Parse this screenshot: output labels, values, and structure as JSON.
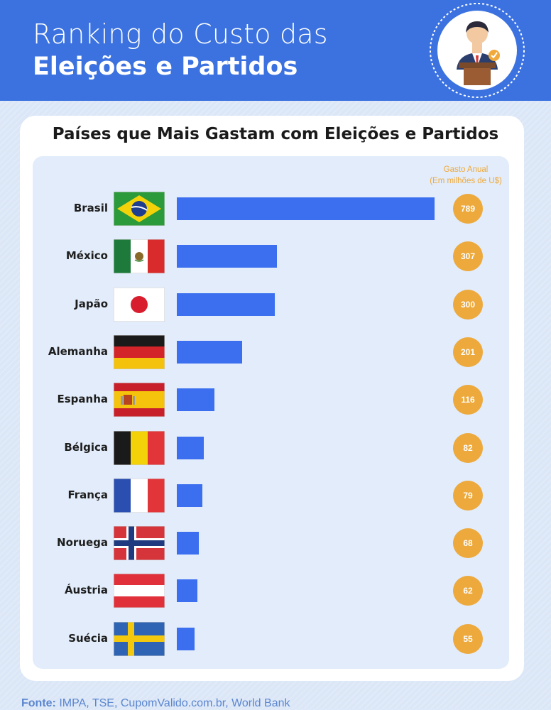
{
  "header": {
    "title_line1": "Ranking do Custo das",
    "title_line2": "Eleições e Partidos"
  },
  "chart_data": {
    "type": "bar",
    "title": "Países que Mais Gastam com Eleições e Partidos",
    "value_header_line1": "Gasto Anual",
    "value_header_line2": "(Em milhões de U$)",
    "categories": [
      "Brasil",
      "México",
      "Japão",
      "Alemanha",
      "Espanha",
      "Bélgica",
      "França",
      "Noruega",
      "Áustria",
      "Suécia"
    ],
    "values": [
      789,
      307,
      300,
      201,
      116,
      82,
      79,
      68,
      62,
      55
    ],
    "flag_icons": [
      "brazil-flag-icon",
      "mexico-flag-icon",
      "japan-flag-icon",
      "germany-flag-icon",
      "spain-flag-icon",
      "belgium-flag-icon",
      "france-flag-icon",
      "norway-flag-icon",
      "austria-flag-icon",
      "sweden-flag-icon"
    ],
    "bar_color": "#3b6ff0",
    "bubble_color": "#eda93b",
    "xlim": [
      0,
      789
    ]
  },
  "source": {
    "label": "Fonte:",
    "text": " IMPA, TSE, CupomValido.com.br, World Bank"
  },
  "colors": {
    "header": "#3b72e0",
    "accent": "#eda93b",
    "bar": "#3b6ff0"
  }
}
